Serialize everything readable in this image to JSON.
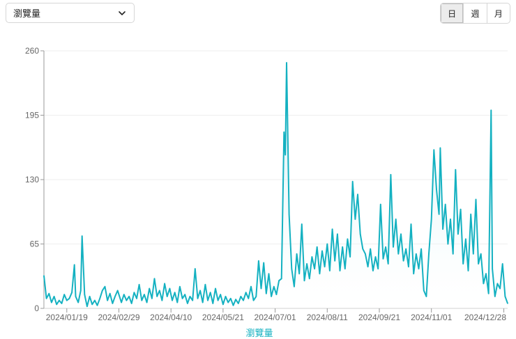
{
  "metric_select": {
    "value": "瀏覽量",
    "icon": "chevron-down-icon"
  },
  "granularity": {
    "options": [
      {
        "label": "日",
        "active": true
      },
      {
        "label": "週",
        "active": false
      },
      {
        "label": "月",
        "active": false
      }
    ]
  },
  "colors": {
    "line": "#14b1c1",
    "area_top": "#bfe9ee",
    "grid": "#eeeeee",
    "axis_title": "#14b1c1"
  },
  "chart_data": {
    "type": "area",
    "xlabel": "瀏覽量",
    "ylabel": "",
    "ylim": [
      0,
      260
    ],
    "yticks": [
      0,
      65,
      130,
      195,
      260
    ],
    "x_start": "2024/01/01",
    "x_end": "2024/12/31",
    "xticks": [
      "2024/01/19",
      "2024/02/29",
      "2024/04/10",
      "2024/05/21",
      "2024/07/01",
      "2024/08/11",
      "2024/09/21",
      "2024/11/01",
      "2024/12/28"
    ],
    "grid": true,
    "series": [
      {
        "points": [
          [
            "2024/01/01",
            33
          ],
          [
            "2024/01/03",
            10
          ],
          [
            "2024/01/05",
            15
          ],
          [
            "2024/01/07",
            6
          ],
          [
            "2024/01/09",
            12
          ],
          [
            "2024/01/11",
            4
          ],
          [
            "2024/01/13",
            8
          ],
          [
            "2024/01/15",
            5
          ],
          [
            "2024/01/17",
            14
          ],
          [
            "2024/01/19",
            8
          ],
          [
            "2024/01/21",
            10
          ],
          [
            "2024/01/23",
            16
          ],
          [
            "2024/01/25",
            44
          ],
          [
            "2024/01/26",
            12
          ],
          [
            "2024/01/28",
            6
          ],
          [
            "2024/01/30",
            18
          ],
          [
            "2024/01/31",
            73
          ],
          [
            "2024/02/02",
            14
          ],
          [
            "2024/02/04",
            2
          ],
          [
            "2024/02/06",
            12
          ],
          [
            "2024/02/08",
            4
          ],
          [
            "2024/02/10",
            8
          ],
          [
            "2024/02/12",
            3
          ],
          [
            "2024/02/14",
            10
          ],
          [
            "2024/02/16",
            18
          ],
          [
            "2024/02/18",
            22
          ],
          [
            "2024/02/20",
            8
          ],
          [
            "2024/02/22",
            15
          ],
          [
            "2024/02/24",
            5
          ],
          [
            "2024/02/26",
            12
          ],
          [
            "2024/02/28",
            18
          ],
          [
            "2024/03/02",
            6
          ],
          [
            "2024/03/04",
            14
          ],
          [
            "2024/03/06",
            8
          ],
          [
            "2024/03/08",
            12
          ],
          [
            "2024/03/10",
            5
          ],
          [
            "2024/03/12",
            16
          ],
          [
            "2024/03/14",
            10
          ],
          [
            "2024/03/16",
            24
          ],
          [
            "2024/03/18",
            8
          ],
          [
            "2024/03/20",
            14
          ],
          [
            "2024/03/22",
            6
          ],
          [
            "2024/03/24",
            20
          ],
          [
            "2024/03/26",
            10
          ],
          [
            "2024/03/28",
            30
          ],
          [
            "2024/03/30",
            12
          ],
          [
            "2024/04/01",
            18
          ],
          [
            "2024/04/03",
            8
          ],
          [
            "2024/04/05",
            25
          ],
          [
            "2024/04/07",
            12
          ],
          [
            "2024/04/09",
            20
          ],
          [
            "2024/04/11",
            8
          ],
          [
            "2024/04/13",
            16
          ],
          [
            "2024/04/15",
            6
          ],
          [
            "2024/04/17",
            22
          ],
          [
            "2024/04/19",
            10
          ],
          [
            "2024/04/21",
            14
          ],
          [
            "2024/04/23",
            5
          ],
          [
            "2024/04/25",
            12
          ],
          [
            "2024/04/27",
            8
          ],
          [
            "2024/04/29",
            40
          ],
          [
            "2024/05/01",
            10
          ],
          [
            "2024/05/03",
            18
          ],
          [
            "2024/05/05",
            6
          ],
          [
            "2024/05/07",
            24
          ],
          [
            "2024/05/09",
            8
          ],
          [
            "2024/05/11",
            16
          ],
          [
            "2024/05/13",
            5
          ],
          [
            "2024/05/15",
            20
          ],
          [
            "2024/05/17",
            8
          ],
          [
            "2024/05/19",
            14
          ],
          [
            "2024/05/21",
            4
          ],
          [
            "2024/05/23",
            12
          ],
          [
            "2024/05/25",
            6
          ],
          [
            "2024/05/27",
            10
          ],
          [
            "2024/05/29",
            3
          ],
          [
            "2024/05/31",
            9
          ],
          [
            "2024/06/02",
            5
          ],
          [
            "2024/06/04",
            12
          ],
          [
            "2024/06/06",
            8
          ],
          [
            "2024/06/08",
            16
          ],
          [
            "2024/06/10",
            10
          ],
          [
            "2024/06/12",
            22
          ],
          [
            "2024/06/14",
            8
          ],
          [
            "2024/06/16",
            12
          ],
          [
            "2024/06/18",
            48
          ],
          [
            "2024/06/20",
            20
          ],
          [
            "2024/06/22",
            46
          ],
          [
            "2024/06/24",
            15
          ],
          [
            "2024/06/26",
            35
          ],
          [
            "2024/06/28",
            12
          ],
          [
            "2024/06/30",
            22
          ],
          [
            "2024/07/02",
            14
          ],
          [
            "2024/07/04",
            28
          ],
          [
            "2024/07/06",
            30
          ],
          [
            "2024/07/08",
            178
          ],
          [
            "2024/07/09",
            155
          ],
          [
            "2024/07/10",
            248
          ],
          [
            "2024/07/12",
            95
          ],
          [
            "2024/07/14",
            40
          ],
          [
            "2024/07/16",
            22
          ],
          [
            "2024/07/18",
            55
          ],
          [
            "2024/07/20",
            35
          ],
          [
            "2024/07/22",
            85
          ],
          [
            "2024/07/24",
            28
          ],
          [
            "2024/07/26",
            45
          ],
          [
            "2024/07/28",
            30
          ],
          [
            "2024/07/30",
            52
          ],
          [
            "2024/08/01",
            40
          ],
          [
            "2024/08/03",
            62
          ],
          [
            "2024/08/05",
            35
          ],
          [
            "2024/08/07",
            58
          ],
          [
            "2024/08/09",
            42
          ],
          [
            "2024/08/11",
            65
          ],
          [
            "2024/08/13",
            38
          ],
          [
            "2024/08/15",
            80
          ],
          [
            "2024/08/17",
            48
          ],
          [
            "2024/08/19",
            75
          ],
          [
            "2024/08/21",
            38
          ],
          [
            "2024/08/23",
            62
          ],
          [
            "2024/08/25",
            40
          ],
          [
            "2024/08/27",
            70
          ],
          [
            "2024/08/29",
            52
          ],
          [
            "2024/08/31",
            128
          ],
          [
            "2024/09/02",
            90
          ],
          [
            "2024/09/04",
            115
          ],
          [
            "2024/09/06",
            75
          ],
          [
            "2024/09/08",
            60
          ],
          [
            "2024/09/10",
            55
          ],
          [
            "2024/09/12",
            42
          ],
          [
            "2024/09/14",
            60
          ],
          [
            "2024/09/16",
            38
          ],
          [
            "2024/09/18",
            52
          ],
          [
            "2024/09/20",
            40
          ],
          [
            "2024/09/22",
            105
          ],
          [
            "2024/09/24",
            50
          ],
          [
            "2024/09/26",
            62
          ],
          [
            "2024/09/28",
            45
          ],
          [
            "2024/09/30",
            135
          ],
          [
            "2024/10/02",
            62
          ],
          [
            "2024/10/04",
            90
          ],
          [
            "2024/10/06",
            55
          ],
          [
            "2024/10/08",
            75
          ],
          [
            "2024/10/10",
            48
          ],
          [
            "2024/10/12",
            60
          ],
          [
            "2024/10/14",
            42
          ],
          [
            "2024/10/16",
            85
          ],
          [
            "2024/10/18",
            35
          ],
          [
            "2024/10/20",
            55
          ],
          [
            "2024/10/22",
            40
          ],
          [
            "2024/10/24",
            60
          ],
          [
            "2024/10/26",
            18
          ],
          [
            "2024/10/28",
            12
          ],
          [
            "2024/10/30",
            55
          ],
          [
            "2024/11/01",
            90
          ],
          [
            "2024/11/03",
            160
          ],
          [
            "2024/11/05",
            120
          ],
          [
            "2024/11/07",
            95
          ],
          [
            "2024/11/08",
            162
          ],
          [
            "2024/11/10",
            80
          ],
          [
            "2024/11/12",
            105
          ],
          [
            "2024/11/14",
            65
          ],
          [
            "2024/11/16",
            90
          ],
          [
            "2024/11/18",
            55
          ],
          [
            "2024/11/20",
            140
          ],
          [
            "2024/11/22",
            75
          ],
          [
            "2024/11/24",
            100
          ],
          [
            "2024/11/26",
            45
          ],
          [
            "2024/11/28",
            70
          ],
          [
            "2024/11/30",
            38
          ],
          [
            "2024/12/02",
            95
          ],
          [
            "2024/12/04",
            55
          ],
          [
            "2024/12/06",
            110
          ],
          [
            "2024/12/08",
            45
          ],
          [
            "2024/12/10",
            55
          ],
          [
            "2024/12/12",
            25
          ],
          [
            "2024/12/14",
            35
          ],
          [
            "2024/12/16",
            15
          ],
          [
            "2024/12/18",
            200
          ],
          [
            "2024/12/19",
            40
          ],
          [
            "2024/12/21",
            12
          ],
          [
            "2024/12/23",
            25
          ],
          [
            "2024/12/25",
            20
          ],
          [
            "2024/12/27",
            45
          ],
          [
            "2024/12/29",
            12
          ],
          [
            "2024/12/31",
            5
          ]
        ]
      }
    ]
  }
}
